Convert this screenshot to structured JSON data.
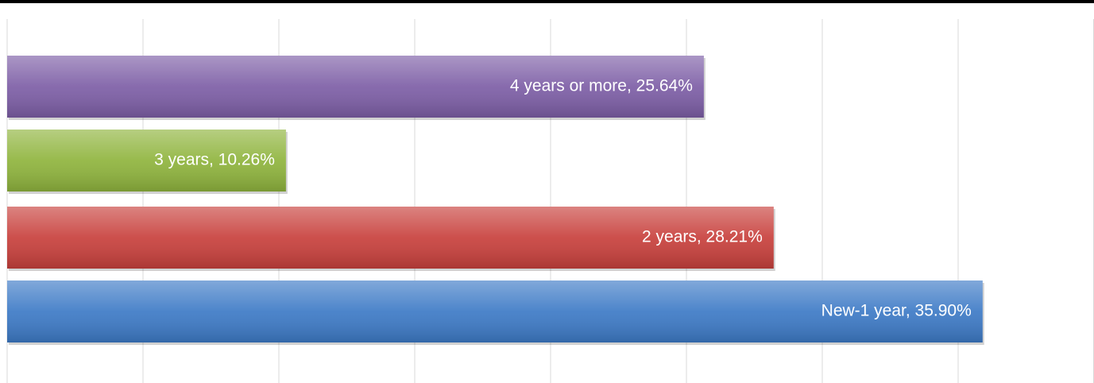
{
  "chart_data": {
    "type": "bar",
    "orientation": "horizontal",
    "values": [
      25.64,
      10.26,
      28.21,
      35.9
    ],
    "value_labels": [
      "4 years or more, 25.64%",
      "3 years, 10.26%",
      "2 years, 28.21%",
      "New-1 year, 35.90%"
    ],
    "colors": [
      "#7d5ea6",
      "#8fb43d",
      "#c8403c",
      "#3d7ac6"
    ],
    "xlim": [
      0,
      40
    ],
    "xticks": [
      0,
      5,
      10,
      15,
      20,
      25,
      30,
      35,
      40
    ],
    "grid": true
  }
}
